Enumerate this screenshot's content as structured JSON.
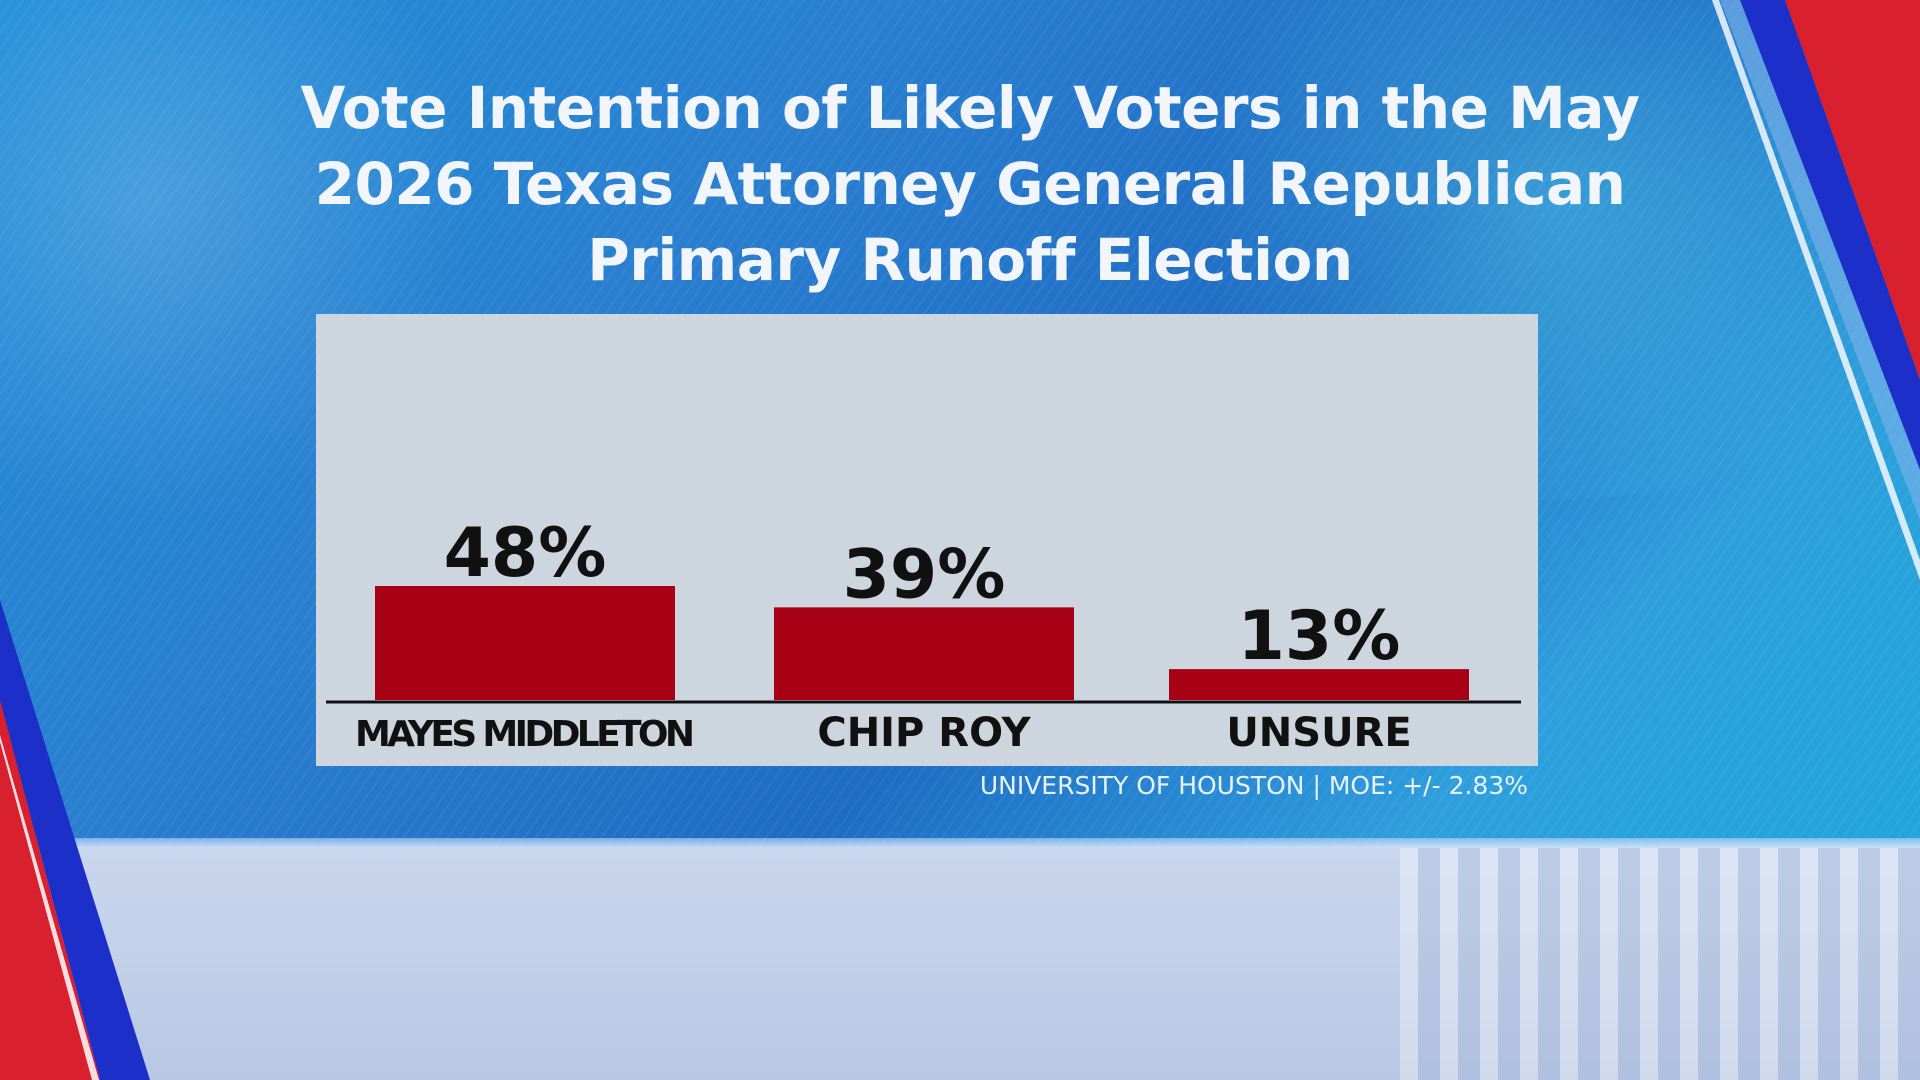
{
  "title": "Vote Intention of Likely Voters in the May 2026 Texas Attorney General Republican Primary Runoff Election",
  "source": "UNIVERSITY OF HOUSTON | MOE: +/- 2.83%",
  "colors": {
    "bar": "#a80014",
    "panel": "#cdd6de",
    "text": "#111111",
    "accent_red": "#d8202f",
    "accent_blue": "#1d2fc9"
  },
  "chart_data": {
    "type": "bar",
    "title": "Vote Intention of Likely Voters in the May 2026 Texas Attorney General Republican Primary Runoff Election",
    "categories": [
      "MAYES MIDDLETON",
      "CHIP ROY",
      "UNSURE"
    ],
    "values": [
      48,
      39,
      13
    ],
    "value_labels": [
      "48%",
      "39%",
      "13%"
    ],
    "xlabel": "",
    "ylabel": "",
    "ylim": [
      0,
      100
    ],
    "grid": false
  }
}
